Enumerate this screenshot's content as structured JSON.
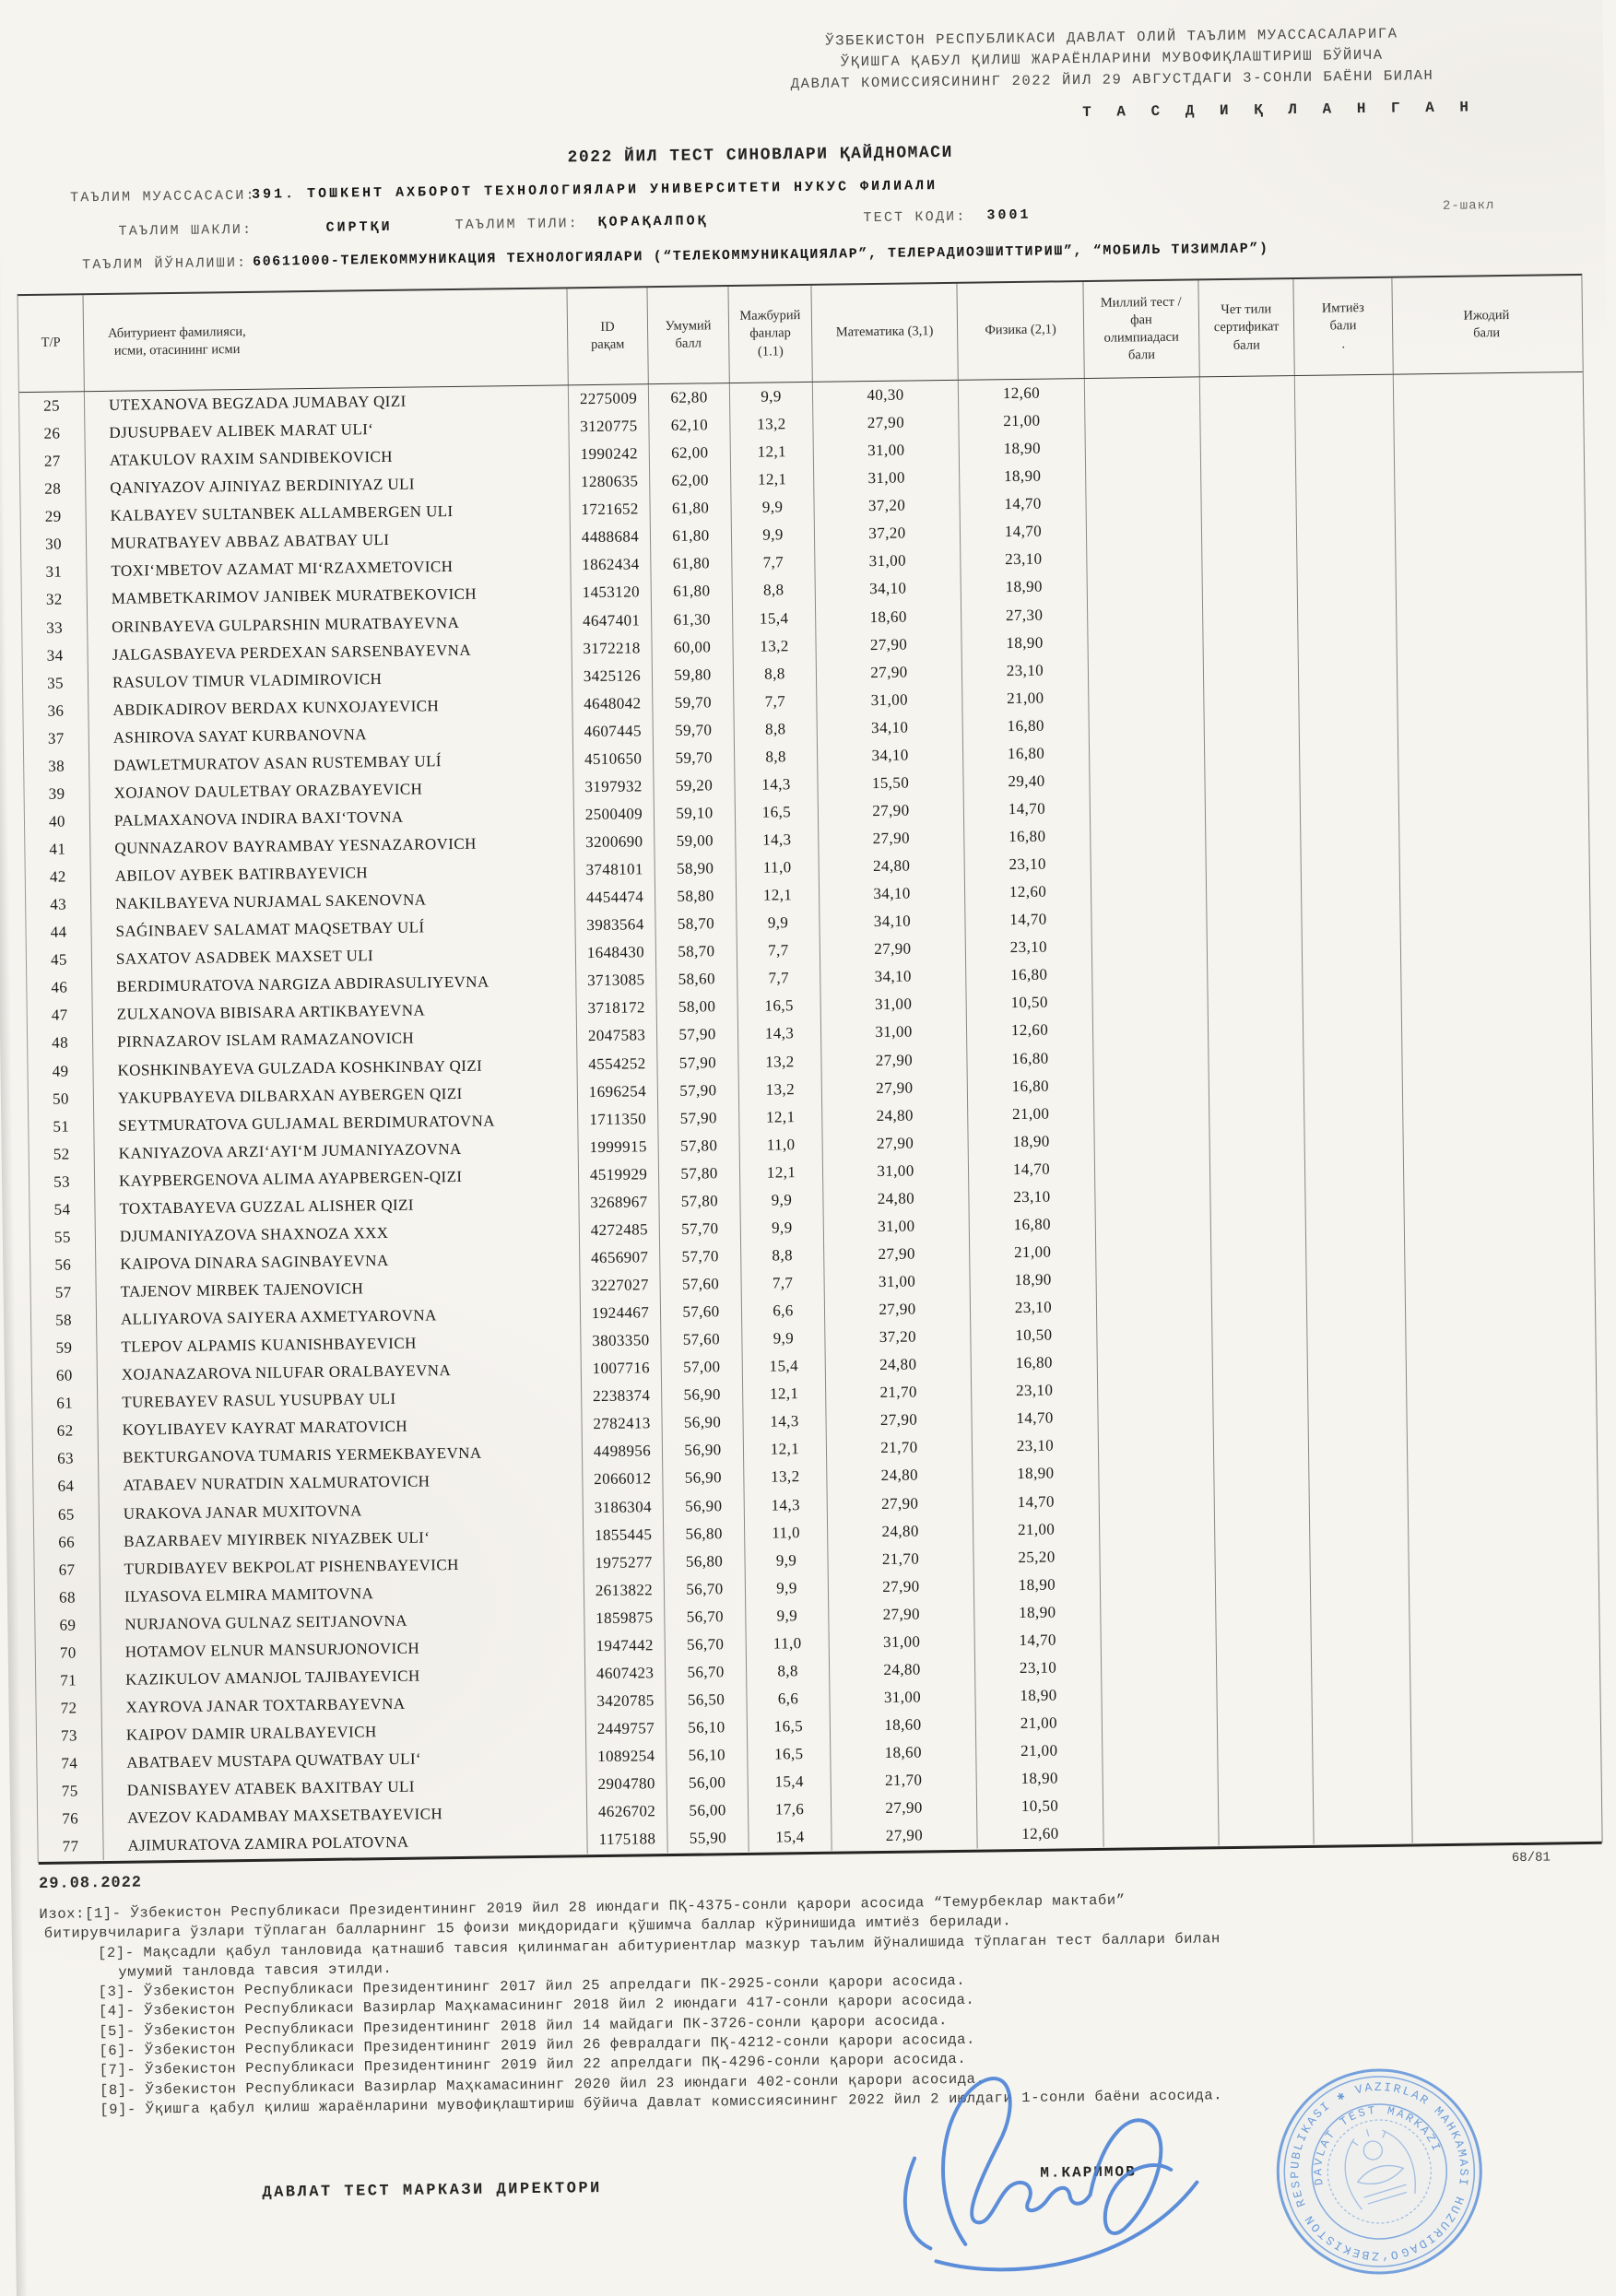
{
  "colors": {
    "paper": "#f6f4ef",
    "ink": "#1f1f1f",
    "stamp_blue": "#5e92d8",
    "signature_blue": "#4b82d6"
  },
  "approval": {
    "line1": "ЎЗБЕКИСТОН РЕСПУБЛИКАСИ ДАВЛАТ ОЛИЙ ТАЪЛИМ МУАССАСАЛАРИГА",
    "line2": "ЎҚИШГА ҚАБУЛ ҚИЛИШ ЖАРАЁНЛАРИНИ МУВОФИҚЛАШТИРИШ БЎЙИЧА",
    "line3": "ДАВЛАТ КОМИССИЯСИНИНГ 2022 ЙИЛ 29 АВГУСТДАГИ 3-СОНЛИ БАЁНИ БИЛАН",
    "approved": "Т А С Д И Қ Л А Н Г А Н"
  },
  "form_label": "2-шакл",
  "title": "2022 ЙИЛ ТЕСТ СИНОВЛАРИ ҚАЙДНОМАСИ",
  "meta": {
    "institution_label": "ТАЪЛИМ МУАССАСАСИ:",
    "institution": "391. ТОШКЕНТ АХБОРОТ ТЕХНОЛОГИЯЛАРИ УНИВЕРСИТЕТИ НУКУС ФИЛИАЛИ",
    "edu_form_label": "ТАЪЛИМ ШАКЛИ:",
    "edu_form": "СИРТҚИ",
    "language_label": "ТАЪЛИМ ТИЛИ:",
    "language": "ҚОРАҚАЛПОҚ",
    "test_code_label": "ТЕСТ КОДИ:",
    "test_code": "3001",
    "direction_label": "ТАЪЛИМ ЙЎНАЛИШИ:",
    "direction": "60611000-ТЕЛЕКОММУНИКАЦИЯ ТЕХНОЛОГИЯЛАРИ (“ТЕЛЕКОММУНИКАЦИЯЛАР”, ТЕЛЕРАДИОЭШИТТИРИШ”, “МОБИЛЬ ТИЗИМЛАР”)"
  },
  "table": {
    "field_names": [
      "no",
      "name",
      "id",
      "total",
      "mandatory",
      "math",
      "physics",
      "national_test",
      "language_cert",
      "privilege",
      "creative"
    ],
    "headers": [
      "Т/Р",
      "Абитуриент фамилияси,\nисми, отасининг исми",
      "ID\nрақам",
      "Умумий\nбалл",
      "Мажбурий\nфанлар\n(1.1)",
      "Математика (3,1)",
      "Физика (2,1)",
      "Миллий тест /\nфан\nолимпиадаси\nбали",
      "Чет тили\nсертификат\nбали",
      "Имтиёз\nбали\n.",
      "Ижодий\nбали"
    ],
    "rows": [
      [
        "25",
        "UTEXANOVA BEGZADA JUMABAY QIZI",
        "2275009",
        "62,80",
        "9,9",
        "40,30",
        "12,60"
      ],
      [
        "26",
        "DJUSUPBAEV ALIBEK MARAT ULIʻ",
        "3120775",
        "62,10",
        "13,2",
        "27,90",
        "21,00"
      ],
      [
        "27",
        "ATAKULOV RAXIM SANDIBEKOVICH",
        "1990242",
        "62,00",
        "12,1",
        "31,00",
        "18,90"
      ],
      [
        "28",
        "QANIYAZOV AJINIYAZ BERDINIYAZ ULI",
        "1280635",
        "62,00",
        "12,1",
        "31,00",
        "18,90"
      ],
      [
        "29",
        "KALBAYEV SULTANBEK ALLAMBERGEN ULI",
        "1721652",
        "61,80",
        "9,9",
        "37,20",
        "14,70"
      ],
      [
        "30",
        "MURATBAYEV ABBAZ ABATBAY ULI",
        "4488684",
        "61,80",
        "9,9",
        "37,20",
        "14,70"
      ],
      [
        "31",
        "TOXIʻMBETOV AZAMAT MIʻRZAXMETOVICH",
        "1862434",
        "61,80",
        "7,7",
        "31,00",
        "23,10"
      ],
      [
        "32",
        "MAMBETKARIMOV JANIBEK MURATBEKOVICH",
        "1453120",
        "61,80",
        "8,8",
        "34,10",
        "18,90"
      ],
      [
        "33",
        "ORINBAYEVA GULPARSHIN MURATBAYEVNA",
        "4647401",
        "61,30",
        "15,4",
        "18,60",
        "27,30"
      ],
      [
        "34",
        "JALGASBAYEVA PERDEXAN SARSENBAYEVNA",
        "3172218",
        "60,00",
        "13,2",
        "27,90",
        "18,90"
      ],
      [
        "35",
        "RASULOV TIMUR VLADIMIROVICH",
        "3425126",
        "59,80",
        "8,8",
        "27,90",
        "23,10"
      ],
      [
        "36",
        "ABDIKADIROV BERDAX KUNXOJAYEVICH",
        "4648042",
        "59,70",
        "7,7",
        "31,00",
        "21,00"
      ],
      [
        "37",
        "ASHIROVA SAYAT KURBANOVNA",
        "4607445",
        "59,70",
        "8,8",
        "34,10",
        "16,80"
      ],
      [
        "38",
        "DAWLETMURATOV ASAN RUSTEMBAY ULÍ",
        "4510650",
        "59,70",
        "8,8",
        "34,10",
        "16,80"
      ],
      [
        "39",
        "XOJANOV DAULETBAY ORAZBAYEVICH",
        "3197932",
        "59,20",
        "14,3",
        "15,50",
        "29,40"
      ],
      [
        "40",
        "PALMAXANOVA INDIRA BAXIʻTOVNA",
        "2500409",
        "59,10",
        "16,5",
        "27,90",
        "14,70"
      ],
      [
        "41",
        "QUNNAZAROV BAYRAMBAY YESNAZAROVICH",
        "3200690",
        "59,00",
        "14,3",
        "27,90",
        "16,80"
      ],
      [
        "42",
        "ABILOV AYBEK BATIRBAYEVICH",
        "3748101",
        "58,90",
        "11,0",
        "24,80",
        "23,10"
      ],
      [
        "43",
        "NAKILBAYEVA NURJAMAL SAKENOVNA",
        "4454474",
        "58,80",
        "12,1",
        "34,10",
        "12,60"
      ],
      [
        "44",
        "SAǴINBAEV SALAMAT MAQSETBAY ULÍ",
        "3983564",
        "58,70",
        "9,9",
        "34,10",
        "14,70"
      ],
      [
        "45",
        "SAXATOV ASADBEK MAXSET ULI",
        "1648430",
        "58,70",
        "7,7",
        "27,90",
        "23,10"
      ],
      [
        "46",
        "BERDIMURATOVA NARGIZA ABDIRASULIYEVNA",
        "3713085",
        "58,60",
        "7,7",
        "34,10",
        "16,80"
      ],
      [
        "47",
        "ZULXANOVA BIBISARA ARTIKBAYEVNA",
        "3718172",
        "58,00",
        "16,5",
        "31,00",
        "10,50"
      ],
      [
        "48",
        "PIRNAZAROV ISLAM RAMAZANOVICH",
        "2047583",
        "57,90",
        "14,3",
        "31,00",
        "12,60"
      ],
      [
        "49",
        "KOSHKINBAYEVA GULZADA KOSHKINBAY QIZI",
        "4554252",
        "57,90",
        "13,2",
        "27,90",
        "16,80"
      ],
      [
        "50",
        "YAKUPBAYEVA DILBARXAN AYBERGEN QIZI",
        "1696254",
        "57,90",
        "13,2",
        "27,90",
        "16,80"
      ],
      [
        "51",
        "SEYTMURATOVA GULJAMAL BERDIMURATOVNA",
        "1711350",
        "57,90",
        "12,1",
        "24,80",
        "21,00"
      ],
      [
        "52",
        "KANIYAZOVA ARZIʻAYIʻM JUMANIYAZOVNA",
        "1999915",
        "57,80",
        "11,0",
        "27,90",
        "18,90"
      ],
      [
        "53",
        "KAYPBERGENOVA ALIMA AYAPBERGEN-QIZI",
        "4519929",
        "57,80",
        "12,1",
        "31,00",
        "14,70"
      ],
      [
        "54",
        "TOXTABAYEVA GUZZAL ALISHER QIZI",
        "3268967",
        "57,80",
        "9,9",
        "24,80",
        "23,10"
      ],
      [
        "55",
        "DJUMANIYAZOVA SHAXNOZA XXX",
        "4272485",
        "57,70",
        "9,9",
        "31,00",
        "16,80"
      ],
      [
        "56",
        "KAIPOVA DINARA SAGINBAYEVNA",
        "4656907",
        "57,70",
        "8,8",
        "27,90",
        "21,00"
      ],
      [
        "57",
        "TAJENOV MIRBEK TAJENOVICH",
        "3227027",
        "57,60",
        "7,7",
        "31,00",
        "18,90"
      ],
      [
        "58",
        "ALLIYAROVA SAIYERA AXMETYAROVNA",
        "1924467",
        "57,60",
        "6,6",
        "27,90",
        "23,10"
      ],
      [
        "59",
        "TLEPOV ALPAMIS KUANISHBAYEVICH",
        "3803350",
        "57,60",
        "9,9",
        "37,20",
        "10,50"
      ],
      [
        "60",
        "XOJANAZAROVA NILUFAR ORALBAYEVNA",
        "1007716",
        "57,00",
        "15,4",
        "24,80",
        "16,80"
      ],
      [
        "61",
        "TUREBAYEV RASUL YUSUPBAY ULI",
        "2238374",
        "56,90",
        "12,1",
        "21,70",
        "23,10"
      ],
      [
        "62",
        "KOYLIBAYEV KAYRAT MARATOVICH",
        "2782413",
        "56,90",
        "14,3",
        "27,90",
        "14,70"
      ],
      [
        "63",
        "BEKTURGANOVA TUMARIS YERMEKBAYEVNA",
        "4498956",
        "56,90",
        "12,1",
        "21,70",
        "23,10"
      ],
      [
        "64",
        "ATABAEV NURATDIN XALMURATOVICH",
        "2066012",
        "56,90",
        "13,2",
        "24,80",
        "18,90"
      ],
      [
        "65",
        "URAKOVA JANAR MUXITOVNA",
        "3186304",
        "56,90",
        "14,3",
        "27,90",
        "14,70"
      ],
      [
        "66",
        "BAZARBAEV MIYIRBEK NIYAZBEK ULIʻ",
        "1855445",
        "56,80",
        "11,0",
        "24,80",
        "21,00"
      ],
      [
        "67",
        "TURDIBAYEV BEKPOLAT PISHENBAYEVICH",
        "1975277",
        "56,80",
        "9,9",
        "21,70",
        "25,20"
      ],
      [
        "68",
        "ILYASOVA ELMIRA MAMITOVNA",
        "2613822",
        "56,70",
        "9,9",
        "27,90",
        "18,90"
      ],
      [
        "69",
        "NURJANOVA GULNAZ SEITJANOVNA",
        "1859875",
        "56,70",
        "9,9",
        "27,90",
        "18,90"
      ],
      [
        "70",
        "HOTAMOV ELNUR MANSURJONOVICH",
        "1947442",
        "56,70",
        "11,0",
        "31,00",
        "14,70"
      ],
      [
        "71",
        "KAZIKULOV AMANJOL TAJIBAYEVICH",
        "4607423",
        "56,70",
        "8,8",
        "24,80",
        "23,10"
      ],
      [
        "72",
        "XAYROVA JANAR TOXTARBAYEVNA",
        "3420785",
        "56,50",
        "6,6",
        "31,00",
        "18,90"
      ],
      [
        "73",
        "KAIPOV DAMIR URALBAYEVICH",
        "2449757",
        "56,10",
        "16,5",
        "18,60",
        "21,00"
      ],
      [
        "74",
        "ABATBAEV MUSTAPA QUWATBAY ULIʻ",
        "1089254",
        "56,10",
        "16,5",
        "18,60",
        "21,00"
      ],
      [
        "75",
        "DANISBAYEV ATABEK BAXITBAY ULI",
        "2904780",
        "56,00",
        "15,4",
        "21,70",
        "18,90"
      ],
      [
        "76",
        "AVEZOV KADAMBAY MAXSETBAYEVICH",
        "4626702",
        "56,00",
        "17,6",
        "27,90",
        "10,50"
      ],
      [
        "77",
        "AJIMURATOVA ZAMIRA POLATOVNA",
        "1175188",
        "55,90",
        "15,4",
        "27,90",
        "12,60"
      ]
    ]
  },
  "date": "29.08.2022",
  "page_number": "68/81",
  "footnotes": [
    {
      "indent": 0,
      "text": "Изох:[1]- Ўзбекистон Республикаси Президентининг 2019 йил 28 июндаги ПҚ-4375-сонли қарори асосида “Темурбеклар мактаби”"
    },
    {
      "indent": 5,
      "text": "битирувчиларига ўзлари тўплаган балларнинг 15 фоизи миқдоридаги қўшимча баллар кўринишида имтиёз берилади."
    },
    {
      "indent": 63,
      "text": "[2]- Мақсадли қабул танловида қатнашиб тавсия қилинмаган абитуриентлар мазкур таълим йўналишида тўплаган тест баллари билан"
    },
    {
      "indent": 85,
      "text": "умумий танловда тавсия этилди."
    },
    {
      "indent": 63,
      "text": "[3]- Ўзбекистон Республикаси Президентининг 2017 йил 25 апрелдаги ПК-2925-сонли қарори асосида."
    },
    {
      "indent": 63,
      "text": "[4]- Ўзбекистон Республикаси Вазирлар Маҳкамасининг 2018 йил 2 июндаги 417-сонли қарори асосида."
    },
    {
      "indent": 63,
      "text": "[5]- Ўзбекистон Республикаси Президентининг 2018 йил 14 майдаги ПК-3726-сонли қарори асосида."
    },
    {
      "indent": 63,
      "text": "[6]- Ўзбекистон Республикаси Президентининг 2019 йил 26 февралдаги ПҚ-4212-сонли қарори асосида."
    },
    {
      "indent": 63,
      "text": "[7]- Ўзбекистон Республикаси Президентининг 2019 йил 22 апрелдаги ПҚ-4296-сонли қарори асосида."
    },
    {
      "indent": 63,
      "text": "[8]- Ўзбекистон Республикаси Вазирлар Маҳкамасининг 2020 йил 23 июндаги 402-сонли қарори асосида."
    },
    {
      "indent": 63,
      "text": "[9]- Ўқишга қабул қилиш жараёнларини мувофиқлаштириш бўйича Давлат комиссиясининг 2022 йил 2 июлдаги 1-сонли баёни асосида."
    }
  ],
  "signature_block": {
    "director_label": "ДАВЛАТ ТЕСТ МАРКАЗИ ДИРЕКТОРИ",
    "director_name": "М.КАРИМОВ",
    "stamp_outer_text": "O‘ZBEKISTON RESPUBLIKASI ✱ VAZIRLAR MAHKAMASI HUZURIDAGI",
    "stamp_inner_text": "DAVLAT TEST MARKAZI"
  }
}
